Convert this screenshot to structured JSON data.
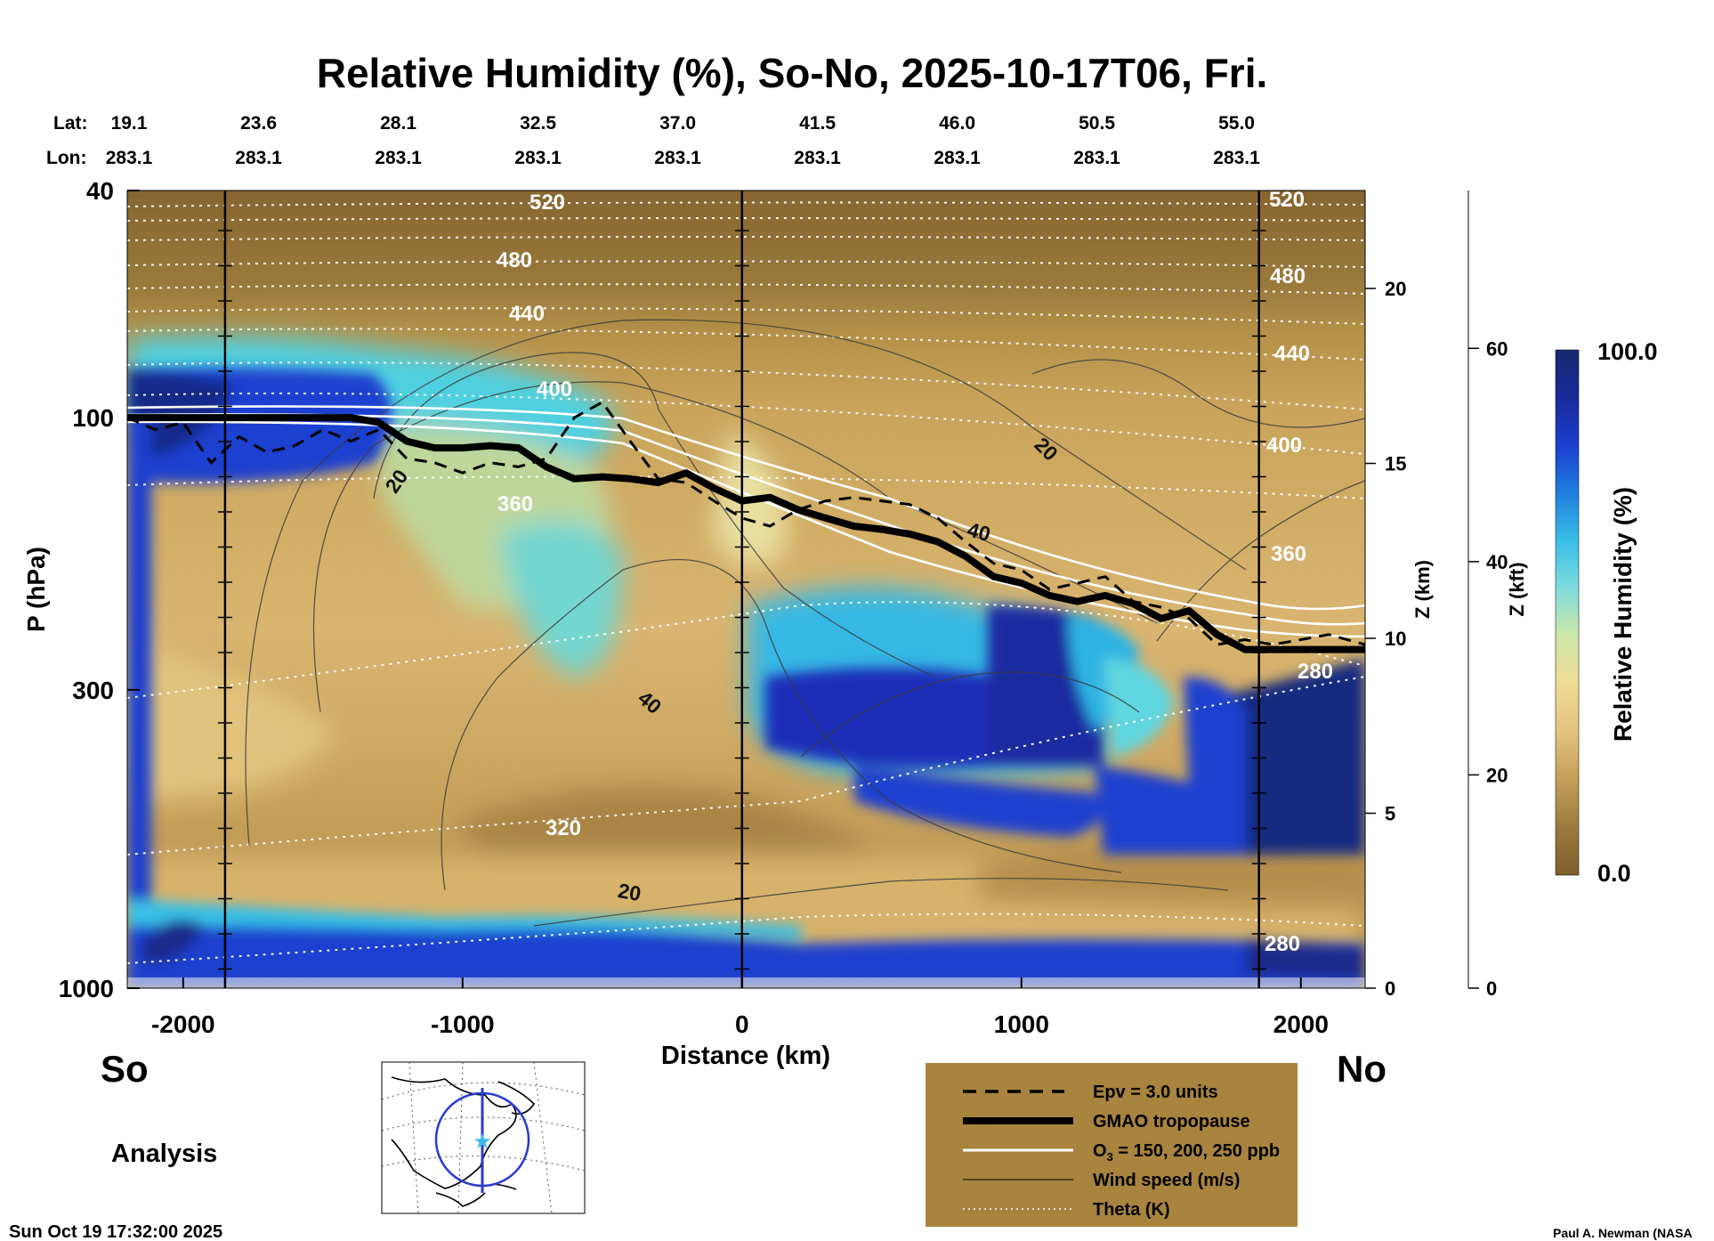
{
  "chart_data": {
    "type": "heatmap",
    "title": "Relative Humidity (%), So-No, 2025-10-17T06, Fri.",
    "xlabel": "Distance (km)",
    "ylabel": "P (hPa)",
    "y2label": "Z (km)",
    "y3label": "Z (kft)",
    "xlim": [
      -2200,
      2230
    ],
    "x_ticks": [
      -2000,
      -1000,
      0,
      1000,
      2000
    ],
    "x_tick_labels": [
      "-2000",
      "-1000",
      "0",
      "1000",
      "2000"
    ],
    "p_ticks": [
      40,
      100,
      300,
      1000
    ],
    "p_tick_labels": [
      "40",
      "100",
      "300",
      "1000"
    ],
    "z_km_ticks": [
      0,
      5,
      10,
      15,
      20
    ],
    "z_km_labels": [
      "0",
      "5",
      "10",
      "15",
      "20"
    ],
    "z_kft_ticks": [
      0,
      20,
      40,
      60
    ],
    "z_kft_labels": [
      "0",
      "20",
      "40",
      "60"
    ],
    "lat_label": "Lat:",
    "lon_label": "Lon:",
    "lats": [
      "19.1",
      "23.6",
      "28.1",
      "32.5",
      "37.0",
      "41.5",
      "46.0",
      "50.5",
      "55.0"
    ],
    "lons": [
      "283.1",
      "283.1",
      "283.1",
      "283.1",
      "283.1",
      "283.1",
      "283.1",
      "283.1",
      "283.1"
    ],
    "label_distances": [
      -2230,
      -1730,
      -1230,
      -730,
      -230,
      270,
      770,
      1270,
      1770
    ],
    "vertical_markers_km": [
      -1850,
      0,
      1850
    ],
    "colorbar": {
      "label": "Relative Humidity (%)",
      "min": 0.0,
      "max": 100.0,
      "min_label": "0.0",
      "max_label": "100.0",
      "colors": [
        "#7f5f2c",
        "#9c7a3e",
        "#c39f58",
        "#e3c37c",
        "#f0dc96",
        "#cfe8a8",
        "#7fdcdc",
        "#39bfe6",
        "#1f7fdf",
        "#1c3fcf",
        "#1a2a9a",
        "#162a6e"
      ]
    },
    "series": [
      {
        "name": "GMAO tropopause",
        "unit": "hPa",
        "x": [
          -2200,
          -2000,
          -1800,
          -1600,
          -1400,
          -1300,
          -1200,
          -1100,
          -1000,
          -900,
          -800,
          -700,
          -600,
          -500,
          -400,
          -300,
          -200,
          -100,
          0,
          100,
          200,
          300,
          400,
          500,
          600,
          700,
          800,
          900,
          1000,
          1100,
          1200,
          1300,
          1400,
          1500,
          1600,
          1700,
          1800,
          2000,
          2230
        ],
        "values": [
          100,
          100,
          100,
          100,
          100,
          102,
          110,
          113,
          113,
          112,
          113,
          122,
          128,
          127,
          128,
          130,
          125,
          133,
          140,
          138,
          145,
          150,
          155,
          157,
          160,
          165,
          175,
          190,
          195,
          205,
          210,
          205,
          212,
          225,
          218,
          240,
          255,
          255,
          255
        ]
      },
      {
        "name": "Epv = 3.0 units",
        "unit": "hPa",
        "x": [
          -2200,
          -2100,
          -2000,
          -1900,
          -1800,
          -1700,
          -1600,
          -1500,
          -1400,
          -1300,
          -1200,
          -1100,
          -1000,
          -900,
          -800,
          -700,
          -600,
          -500,
          -400,
          -300,
          -200,
          -100,
          0,
          100,
          200,
          300,
          400,
          500,
          600,
          700,
          800,
          900,
          1000,
          1100,
          1200,
          1300,
          1400,
          1500,
          1600,
          1700,
          1800,
          1900,
          2000,
          2100,
          2230
        ],
        "values": [
          100,
          105,
          102,
          120,
          108,
          115,
          112,
          105,
          110,
          105,
          118,
          120,
          125,
          120,
          122,
          118,
          100,
          94,
          110,
          128,
          130,
          140,
          150,
          155,
          145,
          140,
          138,
          140,
          142,
          150,
          165,
          180,
          185,
          200,
          195,
          190,
          210,
          215,
          225,
          250,
          245,
          250,
          245,
          240,
          250
        ]
      },
      {
        "name": "Wind speed (m/s)",
        "contours": [
          "20",
          "20",
          "40",
          "40",
          "20"
        ]
      },
      {
        "name": "Theta (K)",
        "levels": [
          "520",
          "480",
          "440",
          "400",
          "360",
          "320",
          "280"
        ]
      },
      {
        "name": "O3 = 150, 200, 250 ppb"
      }
    ],
    "legend": {
      "placement": "bottom-right",
      "items": [
        {
          "label": "Epv = 3.0 units",
          "style": "dashed"
        },
        {
          "label": "GMAO tropopause",
          "style": "thick"
        },
        {
          "label": "O3 = 150, 200, 250 ppb",
          "style": "white"
        },
        {
          "label": "Wind speed (m/s)",
          "style": "thin"
        },
        {
          "label": "Theta (K)",
          "style": "dotted"
        }
      ]
    },
    "legend_o3_prefix": "O",
    "legend_o3_sub": "3",
    "legend_o3_suffix": " = 150, 200, 250 ppb"
  },
  "page": {
    "left_label": "So",
    "right_label": "No",
    "analysis_label": "Analysis",
    "timestamp": "Sun Oct 19 17:32:00 2025",
    "credit": "Paul A. Newman (NASA"
  },
  "colors": {
    "legend_bg": "#a8843f",
    "tropopause": "#000000",
    "ozone": "#ffffff"
  }
}
